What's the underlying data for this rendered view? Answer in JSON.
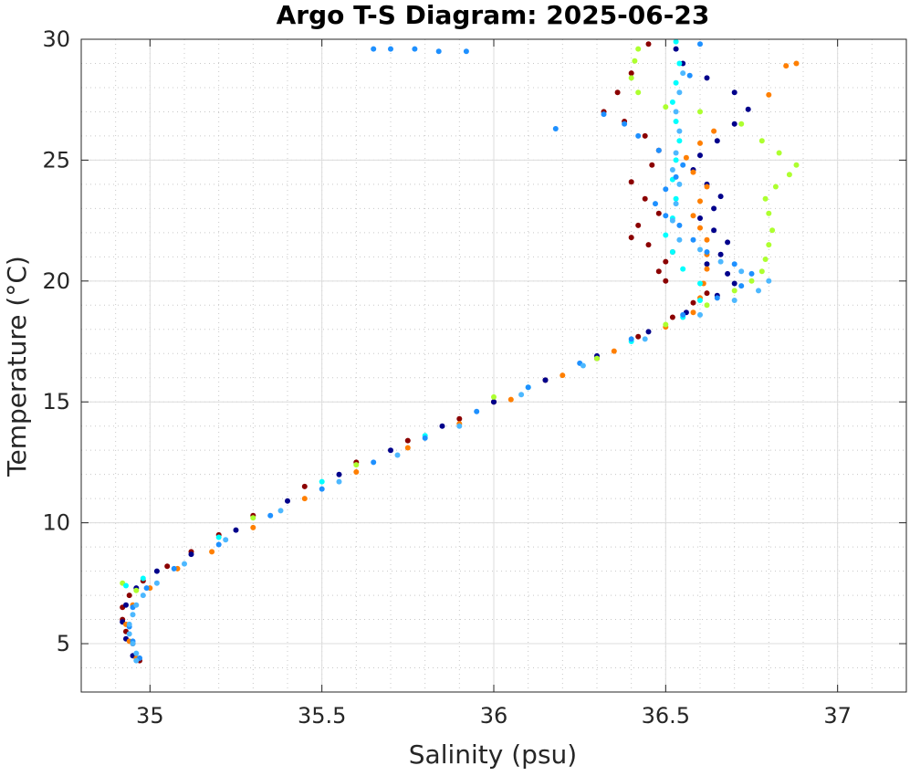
{
  "chart_data": {
    "type": "scatter",
    "title": "Argo T-S Diagram: 2025-06-23",
    "xlabel": "Salinity (psu)",
    "ylabel": "Temperature (°C)",
    "xlim": [
      34.8,
      37.2
    ],
    "ylim": [
      3,
      30
    ],
    "xticks": [
      35,
      35.5,
      36,
      36.5,
      37
    ],
    "xtick_labels": [
      "35",
      "35.5",
      "36",
      "36.5",
      "37"
    ],
    "yticks": [
      5,
      10,
      15,
      20,
      25,
      30
    ],
    "ytick_labels": [
      "5",
      "10",
      "15",
      "20",
      "25",
      "30"
    ],
    "grid": true,
    "minor_grid": true,
    "legend": "none",
    "series": [
      {
        "color": "#8b0000",
        "points": [
          [
            34.97,
            4.3
          ],
          [
            34.95,
            5.0
          ],
          [
            34.93,
            5.5
          ],
          [
            34.92,
            6.0
          ],
          [
            34.92,
            6.5
          ],
          [
            34.94,
            7.0
          ],
          [
            34.98,
            7.6
          ],
          [
            35.05,
            8.2
          ],
          [
            35.12,
            8.8
          ],
          [
            35.2,
            9.5
          ],
          [
            35.3,
            10.3
          ],
          [
            35.45,
            11.5
          ],
          [
            35.6,
            12.5
          ],
          [
            35.75,
            13.4
          ],
          [
            35.9,
            14.3
          ],
          [
            36.0,
            15.0
          ],
          [
            36.15,
            15.9
          ],
          [
            36.3,
            16.8
          ],
          [
            36.42,
            17.7
          ],
          [
            36.52,
            18.5
          ],
          [
            36.58,
            19.1
          ],
          [
            36.62,
            19.5
          ],
          [
            36.5,
            20.0
          ],
          [
            36.48,
            20.4
          ],
          [
            36.5,
            20.8
          ],
          [
            36.52,
            21.2
          ],
          [
            36.45,
            21.5
          ],
          [
            36.4,
            21.8
          ],
          [
            36.42,
            22.3
          ],
          [
            36.48,
            22.8
          ],
          [
            36.44,
            23.4
          ],
          [
            36.4,
            24.1
          ],
          [
            36.46,
            24.8
          ],
          [
            36.48,
            25.4
          ],
          [
            36.44,
            26.0
          ],
          [
            36.38,
            26.6
          ],
          [
            36.32,
            27.0
          ],
          [
            36.36,
            27.8
          ],
          [
            36.4,
            28.6
          ],
          [
            36.45,
            29.8
          ]
        ]
      },
      {
        "color": "#00008b",
        "points": [
          [
            34.95,
            4.5
          ],
          [
            34.93,
            5.2
          ],
          [
            34.92,
            5.9
          ],
          [
            34.93,
            6.6
          ],
          [
            34.96,
            7.3
          ],
          [
            35.02,
            8.0
          ],
          [
            35.12,
            8.7
          ],
          [
            35.25,
            9.7
          ],
          [
            35.4,
            10.9
          ],
          [
            35.55,
            12.0
          ],
          [
            35.7,
            13.0
          ],
          [
            35.85,
            14.0
          ],
          [
            36.0,
            15.0
          ],
          [
            36.15,
            15.9
          ],
          [
            36.3,
            16.9
          ],
          [
            36.45,
            17.9
          ],
          [
            36.56,
            18.7
          ],
          [
            36.65,
            19.4
          ],
          [
            36.7,
            19.9
          ],
          [
            36.68,
            20.3
          ],
          [
            36.62,
            20.7
          ],
          [
            36.66,
            21.1
          ],
          [
            36.68,
            21.6
          ],
          [
            36.64,
            22.1
          ],
          [
            36.6,
            22.6
          ],
          [
            36.64,
            23.0
          ],
          [
            36.66,
            23.5
          ],
          [
            36.62,
            24.0
          ],
          [
            36.58,
            24.6
          ],
          [
            36.6,
            25.2
          ],
          [
            36.65,
            25.8
          ],
          [
            36.7,
            26.5
          ],
          [
            36.74,
            27.1
          ],
          [
            36.7,
            27.8
          ],
          [
            36.62,
            28.4
          ],
          [
            36.55,
            29.0
          ],
          [
            36.53,
            29.6
          ]
        ]
      },
      {
        "color": "#ff7f00",
        "points": [
          [
            34.96,
            4.4
          ],
          [
            34.94,
            5.1
          ],
          [
            34.93,
            5.8
          ],
          [
            34.95,
            6.6
          ],
          [
            35.0,
            7.3
          ],
          [
            35.08,
            8.1
          ],
          [
            35.18,
            8.8
          ],
          [
            35.3,
            9.8
          ],
          [
            35.45,
            11.0
          ],
          [
            35.6,
            12.1
          ],
          [
            35.75,
            13.1
          ],
          [
            35.9,
            14.1
          ],
          [
            36.05,
            15.1
          ],
          [
            36.2,
            16.1
          ],
          [
            36.35,
            17.1
          ],
          [
            36.5,
            18.1
          ],
          [
            36.58,
            18.7
          ],
          [
            36.6,
            19.3
          ],
          [
            36.61,
            19.9
          ],
          [
            36.62,
            20.5
          ],
          [
            36.62,
            21.1
          ],
          [
            36.62,
            21.7
          ],
          [
            36.6,
            22.2
          ],
          [
            36.58,
            22.7
          ],
          [
            36.6,
            23.3
          ],
          [
            36.62,
            23.9
          ],
          [
            36.58,
            24.5
          ],
          [
            36.56,
            25.1
          ],
          [
            36.6,
            25.7
          ],
          [
            36.64,
            26.2
          ],
          [
            36.8,
            27.7
          ],
          [
            36.85,
            28.9
          ],
          [
            36.88,
            29.0
          ]
        ]
      },
      {
        "color": "#adff2f",
        "points": [
          [
            34.92,
            7.5
          ],
          [
            34.96,
            7.2
          ],
          [
            35.3,
            10.2
          ],
          [
            35.6,
            12.4
          ],
          [
            36.0,
            15.2
          ],
          [
            36.3,
            16.8
          ],
          [
            36.5,
            18.2
          ],
          [
            36.62,
            19.0
          ],
          [
            36.7,
            19.6
          ],
          [
            36.75,
            20.0
          ],
          [
            36.78,
            20.4
          ],
          [
            36.79,
            20.9
          ],
          [
            36.8,
            21.5
          ],
          [
            36.81,
            22.1
          ],
          [
            36.8,
            22.8
          ],
          [
            36.79,
            23.4
          ],
          [
            36.82,
            23.9
          ],
          [
            36.86,
            24.4
          ],
          [
            36.88,
            24.8
          ],
          [
            36.83,
            25.3
          ],
          [
            36.78,
            25.8
          ],
          [
            36.72,
            26.5
          ],
          [
            36.6,
            27.0
          ],
          [
            36.5,
            27.2
          ],
          [
            36.42,
            27.8
          ],
          [
            36.4,
            28.4
          ],
          [
            36.41,
            29.1
          ],
          [
            36.42,
            29.6
          ]
        ]
      },
      {
        "color": "#00ffff",
        "points": [
          [
            34.93,
            7.4
          ],
          [
            34.98,
            7.7
          ],
          [
            35.2,
            9.4
          ],
          [
            35.5,
            11.7
          ],
          [
            35.8,
            13.6
          ],
          [
            36.1,
            15.6
          ],
          [
            36.4,
            17.5
          ],
          [
            36.55,
            18.5
          ],
          [
            36.6,
            19.2
          ],
          [
            36.6,
            19.9
          ],
          [
            36.55,
            20.5
          ],
          [
            36.52,
            21.2
          ],
          [
            36.5,
            21.9
          ],
          [
            36.52,
            22.6
          ],
          [
            36.53,
            23.4
          ],
          [
            36.52,
            24.2
          ],
          [
            36.53,
            25.0
          ],
          [
            36.54,
            25.8
          ],
          [
            36.53,
            26.6
          ],
          [
            36.52,
            27.4
          ],
          [
            36.53,
            28.2
          ],
          [
            36.54,
            29.0
          ],
          [
            36.53,
            29.9
          ]
        ]
      },
      {
        "color": "#1e90ff",
        "points": [
          [
            34.97,
            4.4
          ],
          [
            34.95,
            5.1
          ],
          [
            34.94,
            5.7
          ],
          [
            34.95,
            6.5
          ],
          [
            34.99,
            7.3
          ],
          [
            35.07,
            8.1
          ],
          [
            35.2,
            9.1
          ],
          [
            35.35,
            10.3
          ],
          [
            35.5,
            11.4
          ],
          [
            35.65,
            12.5
          ],
          [
            35.8,
            13.5
          ],
          [
            35.95,
            14.6
          ],
          [
            36.1,
            15.6
          ],
          [
            36.25,
            16.6
          ],
          [
            36.4,
            17.6
          ],
          [
            36.55,
            18.6
          ],
          [
            36.65,
            19.3
          ],
          [
            36.72,
            19.8
          ],
          [
            36.75,
            20.3
          ],
          [
            36.7,
            20.7
          ],
          [
            36.62,
            21.2
          ],
          [
            36.58,
            21.7
          ],
          [
            36.54,
            22.3
          ],
          [
            36.5,
            22.7
          ],
          [
            36.47,
            23.2
          ],
          [
            36.5,
            23.8
          ],
          [
            36.53,
            24.3
          ],
          [
            36.55,
            24.8
          ],
          [
            36.48,
            25.4
          ],
          [
            36.42,
            26.0
          ],
          [
            36.38,
            26.5
          ],
          [
            36.32,
            26.9
          ],
          [
            36.18,
            26.3
          ],
          [
            35.65,
            29.6
          ],
          [
            35.7,
            29.6
          ],
          [
            35.77,
            29.6
          ],
          [
            35.84,
            29.5
          ],
          [
            35.92,
            29.5
          ],
          [
            36.6,
            29.8
          ],
          [
            36.57,
            28.5
          ]
        ]
      },
      {
        "color": "#4db8ff",
        "points": [
          [
            34.96,
            4.3
          ],
          [
            34.96,
            4.6
          ],
          [
            34.95,
            5.0
          ],
          [
            34.94,
            5.4
          ],
          [
            34.94,
            5.8
          ],
          [
            34.95,
            6.2
          ],
          [
            34.96,
            6.6
          ],
          [
            34.98,
            7.0
          ],
          [
            35.02,
            7.5
          ],
          [
            35.1,
            8.3
          ],
          [
            35.22,
            9.3
          ],
          [
            35.38,
            10.5
          ],
          [
            35.55,
            11.7
          ],
          [
            35.72,
            12.8
          ],
          [
            35.9,
            14.0
          ],
          [
            36.08,
            15.3
          ],
          [
            36.26,
            16.5
          ],
          [
            36.44,
            17.6
          ],
          [
            36.6,
            18.6
          ],
          [
            36.7,
            19.2
          ],
          [
            36.77,
            19.6
          ],
          [
            36.8,
            20.0
          ],
          [
            36.72,
            20.4
          ],
          [
            36.66,
            20.8
          ],
          [
            36.6,
            21.3
          ],
          [
            36.54,
            21.7
          ],
          [
            36.52,
            22.5
          ],
          [
            36.53,
            23.2
          ],
          [
            36.54,
            24.0
          ],
          [
            36.52,
            24.6
          ],
          [
            36.53,
            25.3
          ],
          [
            36.54,
            26.2
          ],
          [
            36.53,
            27.0
          ],
          [
            36.54,
            27.8
          ],
          [
            36.55,
            28.6
          ]
        ]
      }
    ]
  }
}
